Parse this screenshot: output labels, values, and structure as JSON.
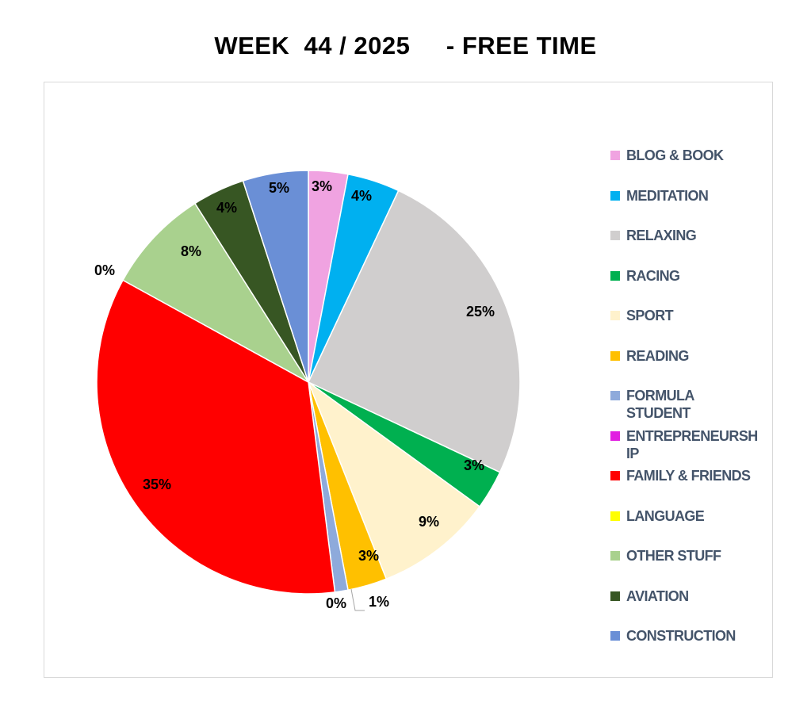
{
  "chart_data": {
    "type": "pie",
    "title": "WEEK  44 / 2025     - FREE TIME",
    "slices": [
      {
        "name": "BLOG & BOOK",
        "value": 3,
        "label": "3%",
        "color": "#f0a3e1"
      },
      {
        "name": "MEDITATION",
        "value": 4,
        "label": "4%",
        "color": "#00b0f0"
      },
      {
        "name": "RELAXING",
        "value": 25,
        "label": "25%",
        "color": "#d0cece"
      },
      {
        "name": "RACING",
        "value": 3,
        "label": "3%",
        "color": "#00b050"
      },
      {
        "name": "SPORT",
        "value": 9,
        "label": "9%",
        "color": "#fff2cc"
      },
      {
        "name": "READING",
        "value": 3,
        "label": "3%",
        "color": "#ffc000"
      },
      {
        "name": "FORMULA\nSTUDENT",
        "value": 1,
        "label": "1%",
        "color": "#8eaadb"
      },
      {
        "name": "ENTREPRENEURSH\nIP",
        "value": 0,
        "label": "0%",
        "color": "#e11ee1"
      },
      {
        "name": "FAMILY & FRIENDS",
        "value": 35,
        "label": "35%",
        "color": "#ff0000"
      },
      {
        "name": "LANGUAGE",
        "value": 0,
        "label": "0%",
        "color": "#ffff00"
      },
      {
        "name": "OTHER STUFF",
        "value": 8,
        "label": "8%",
        "color": "#a9d18e"
      },
      {
        "name": "AVIATION",
        "value": 4,
        "label": "4%",
        "color": "#375623"
      },
      {
        "name": "CONSTRUCTION",
        "value": 5,
        "label": "5%",
        "color": "#6a8fd6"
      }
    ],
    "legend_position": "right"
  }
}
